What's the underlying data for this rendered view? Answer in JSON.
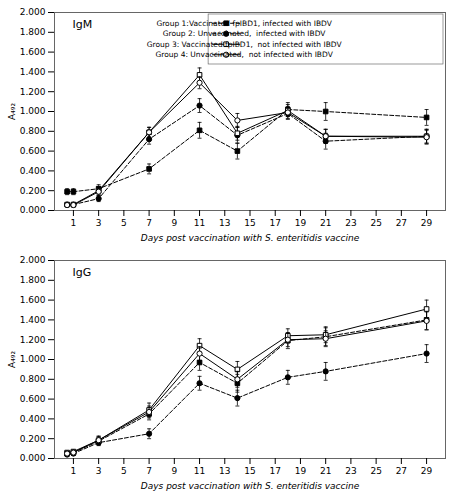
{
  "chart_data": [
    {
      "type": "line",
      "annotations": [
        "IgM"
      ],
      "xlabel": "Days post vaccination with S. enteritidis vaccine",
      "ylabel": "A₄₉₂",
      "x": [
        0.5,
        1,
        3,
        7,
        11,
        14,
        18,
        21,
        29
      ],
      "xlim": [
        -0.5,
        30.5
      ],
      "xticks": [
        1,
        3,
        5,
        7,
        9,
        11,
        13,
        15,
        17,
        19,
        21,
        23,
        25,
        27,
        29
      ],
      "ylim": [
        0.0,
        2.0
      ],
      "yticks": [
        {
          "value": 0.0,
          "label": "0.000"
        },
        {
          "value": 0.2,
          "label": "0.200"
        },
        {
          "value": 0.4,
          "label": "0.400"
        },
        {
          "value": 0.6,
          "label": "0.600"
        },
        {
          "value": 0.8,
          "label": "0.800"
        },
        {
          "value": 1.0,
          "label": "1.000"
        },
        {
          "value": 1.2,
          "label": "1.200"
        },
        {
          "value": 1.4,
          "label": "1.400"
        },
        {
          "value": 1.6,
          "label": "1.600"
        },
        {
          "value": 1.8,
          "label": "1.800"
        },
        {
          "value": 2.0,
          "label": "2.000"
        }
      ],
      "legend": "upper right",
      "series": [
        {
          "name": "Group 1:Vaccinated fpIBD1, infected with IBDV",
          "color": "#000000",
          "marker": "filled_square",
          "line_style": "dashed",
          "values": [
            0.19,
            0.19,
            0.22,
            0.42,
            0.81,
            0.6,
            1.02,
            1.0,
            0.94
          ],
          "errors": [
            0.03,
            0.03,
            0.04,
            0.05,
            0.08,
            0.08,
            0.07,
            0.09,
            0.08
          ]
        },
        {
          "name": "Group 2: Unvaccinated,  infected with IBDV",
          "color": "#000000",
          "marker": "filled_circle",
          "line_style": "dashed",
          "values": [
            0.06,
            0.06,
            0.12,
            0.72,
            1.06,
            0.76,
            0.98,
            0.7,
            0.75
          ],
          "errors": [
            0.02,
            0.02,
            0.03,
            0.05,
            0.07,
            0.08,
            0.06,
            0.08,
            0.07
          ]
        },
        {
          "name": "Group 3: Vaccinated fpIBD1,  not infected with IBDV",
          "color": "#000000",
          "marker": "open_square",
          "line_style": "solid",
          "values": [
            0.06,
            0.06,
            0.2,
            0.79,
            1.37,
            0.78,
            1.01,
            0.75,
            0.75
          ],
          "errors": [
            0.02,
            0.02,
            0.04,
            0.05,
            0.07,
            0.07,
            0.06,
            0.07,
            0.07
          ]
        },
        {
          "name": "Group 4: Unvaccinated,  not infected with IBDV",
          "color": "#000000",
          "marker": "open_circle",
          "line_style": "solid",
          "values": [
            0.055,
            0.055,
            0.19,
            0.79,
            1.29,
            0.91,
            0.99,
            0.75,
            0.74
          ],
          "errors": [
            0.02,
            0.02,
            0.04,
            0.05,
            0.06,
            0.07,
            0.06,
            0.07,
            0.07
          ]
        }
      ]
    },
    {
      "type": "line",
      "annotations": [
        "IgG"
      ],
      "xlabel": "Days post vaccination with S. enteritidis vaccine",
      "ylabel": "A₄₉₂",
      "x": [
        0.5,
        1,
        3,
        7,
        11,
        14,
        18,
        21,
        29
      ],
      "xlim": [
        -0.5,
        30.5
      ],
      "xticks": [
        1,
        3,
        5,
        7,
        9,
        11,
        13,
        15,
        17,
        19,
        21,
        23,
        25,
        27,
        29
      ],
      "ylim": [
        0.0,
        2.0
      ],
      "yticks": [
        {
          "value": 0.0,
          "label": "0.000"
        },
        {
          "value": 0.2,
          "label": "0.200"
        },
        {
          "value": 0.4,
          "label": "0.400"
        },
        {
          "value": 0.6,
          "label": "0.600"
        },
        {
          "value": 0.8,
          "label": "0.800"
        },
        {
          "value": 1.0,
          "label": "1.000"
        },
        {
          "value": 1.2,
          "label": "1.200"
        },
        {
          "value": 1.4,
          "label": "1.400"
        },
        {
          "value": 1.6,
          "label": "1.600"
        },
        {
          "value": 1.8,
          "label": "1.800"
        },
        {
          "value": 2.0,
          "label": "2.000"
        }
      ],
      "series": [
        {
          "color": "#000000",
          "marker": "filled_square",
          "line_style": "dashed",
          "values": [
            0.05,
            0.06,
            0.175,
            0.45,
            0.97,
            0.76,
            1.19,
            1.23,
            1.4
          ],
          "errors": [
            0.02,
            0.02,
            0.04,
            0.06,
            0.08,
            0.09,
            0.08,
            0.09,
            0.1
          ]
        },
        {
          "color": "#000000",
          "marker": "filled_circle",
          "line_style": "dashed",
          "values": [
            0.04,
            0.05,
            0.16,
            0.25,
            0.76,
            0.61,
            0.82,
            0.88,
            1.06
          ],
          "errors": [
            0.02,
            0.02,
            0.03,
            0.05,
            0.07,
            0.08,
            0.07,
            0.09,
            0.09
          ]
        },
        {
          "color": "#000000",
          "marker": "open_square",
          "line_style": "solid",
          "values": [
            0.06,
            0.07,
            0.185,
            0.49,
            1.14,
            0.9,
            1.24,
            1.25,
            1.51
          ],
          "errors": [
            0.02,
            0.02,
            0.04,
            0.07,
            0.07,
            0.08,
            0.07,
            0.08,
            0.09
          ]
        },
        {
          "color": "#000000",
          "marker": "open_circle",
          "line_style": "solid",
          "values": [
            0.05,
            0.06,
            0.185,
            0.47,
            1.06,
            0.8,
            1.2,
            1.21,
            1.39
          ],
          "errors": [
            0.02,
            0.02,
            0.04,
            0.06,
            0.07,
            0.08,
            0.07,
            0.08,
            0.09
          ]
        }
      ]
    }
  ]
}
